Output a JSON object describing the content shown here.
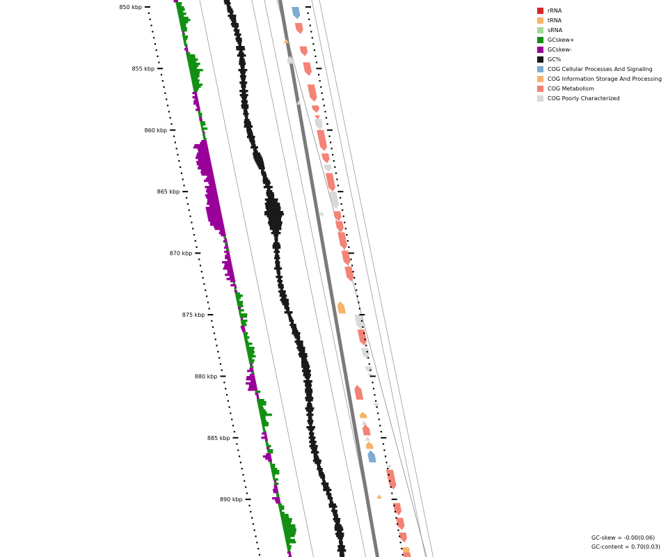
{
  "legend": [
    {
      "label": "rRNA",
      "color": "#d62728"
    },
    {
      "label": "tRNA",
      "color": "#f7b36b"
    },
    {
      "label": "sRNA",
      "color": "#a6d996"
    },
    {
      "label": "GCskew+",
      "color": "#138f13"
    },
    {
      "label": "GCskew-",
      "color": "#990099"
    },
    {
      "label": "GC%",
      "color": "#1a1a1a"
    },
    {
      "label": "COG Cellular Processes And Signaling",
      "color": "#7faad4"
    },
    {
      "label": "COG Information Storage And Processing",
      "color": "#f7b36b"
    },
    {
      "label": "COG Metabolism",
      "color": "#f48377"
    },
    {
      "label": "COG Poorly Characterized",
      "color": "#d9d9d9"
    }
  ],
  "stats": {
    "gc_skew": "GC-skew = -0.00(0.06)",
    "gc_content": "GC-content = 0.70(0.03)"
  },
  "ticks": [
    {
      "kbp": 850,
      "label": "850 kbp"
    },
    {
      "kbp": 855,
      "label": "855 kbp"
    },
    {
      "kbp": 860,
      "label": "860 kbp"
    },
    {
      "kbp": 865,
      "label": "865 kbp"
    },
    {
      "kbp": 870,
      "label": "870 kbp"
    },
    {
      "kbp": 875,
      "label": "875 kbp"
    },
    {
      "kbp": 880,
      "label": "880 kbp"
    },
    {
      "kbp": 885,
      "label": "885 kbp"
    },
    {
      "kbp": 890,
      "label": "890 kbp"
    }
  ],
  "genes": [
    {
      "kbp": 850.0,
      "len": 1.0,
      "strand": "+",
      "cog": "COG Cellular Processes And Signaling"
    },
    {
      "kbp": 851.3,
      "len": 0.9,
      "strand": "+",
      "cog": "COG Metabolism"
    },
    {
      "kbp": 852.6,
      "len": 0.3,
      "strand": "-",
      "cog": "COG Information Storage And Processing"
    },
    {
      "kbp": 853.2,
      "len": 0.8,
      "strand": "+",
      "cog": "COG Metabolism"
    },
    {
      "kbp": 854.0,
      "len": 0.6,
      "strand": "-",
      "cog": "COG Poorly Characterized"
    },
    {
      "kbp": 854.5,
      "len": 1.1,
      "strand": "+",
      "cog": "COG Metabolism"
    },
    {
      "kbp": 856.3,
      "len": 1.4,
      "strand": "+",
      "cog": "COG Metabolism"
    },
    {
      "kbp": 857.6,
      "len": 0.4,
      "strand": "-",
      "cog": "COG Poorly Characterized"
    },
    {
      "kbp": 858.0,
      "len": 0.6,
      "strand": "+",
      "cog": "COG Metabolism"
    },
    {
      "kbp": 858.8,
      "len": 0.3,
      "strand": "+",
      "cog": "COG Metabolism"
    },
    {
      "kbp": 859.1,
      "len": 0.9,
      "strand": "+",
      "cog": "COG Poorly Characterized"
    },
    {
      "kbp": 860.0,
      "len": 1.7,
      "strand": "+",
      "cog": "COG Metabolism"
    },
    {
      "kbp": 861.9,
      "len": 0.8,
      "strand": "+",
      "cog": "COG Metabolism"
    },
    {
      "kbp": 862.8,
      "len": 0.6,
      "strand": "+",
      "cog": "COG Poorly Characterized"
    },
    {
      "kbp": 863.5,
      "len": 1.5,
      "strand": "+",
      "cog": "COG Metabolism"
    },
    {
      "kbp": 865.0,
      "len": 1.4,
      "strand": "+",
      "cog": "COG Poorly Characterized"
    },
    {
      "kbp": 866.6,
      "len": 0.4,
      "strand": "-",
      "cog": "COG Poorly Characterized"
    },
    {
      "kbp": 866.6,
      "len": 0.8,
      "strand": "+",
      "cog": "COG Metabolism"
    },
    {
      "kbp": 867.4,
      "len": 0.9,
      "strand": "+",
      "cog": "COG Metabolism"
    },
    {
      "kbp": 868.3,
      "len": 1.4,
      "strand": "+",
      "cog": "COG Metabolism"
    },
    {
      "kbp": 869.8,
      "len": 1.2,
      "strand": "+",
      "cog": "COG Metabolism"
    },
    {
      "kbp": 871.1,
      "len": 1.2,
      "strand": "+",
      "cog": "COG Metabolism"
    },
    {
      "kbp": 873.9,
      "len": 1.0,
      "strand": "-",
      "cog": "COG Information Storage And Processing"
    },
    {
      "kbp": 875.0,
      "len": 1.2,
      "strand": "+",
      "cog": "COG Poorly Characterized"
    },
    {
      "kbp": 876.2,
      "len": 1.3,
      "strand": "+",
      "cog": "COG Metabolism"
    },
    {
      "kbp": 877.7,
      "len": 0.9,
      "strand": "+",
      "cog": "COG Poorly Characterized"
    },
    {
      "kbp": 879.2,
      "len": 0.5,
      "strand": "+",
      "cog": "COG Poorly Characterized"
    },
    {
      "kbp": 879.8,
      "len": 0.4,
      "strand": "+",
      "cog": "COG Poorly Characterized"
    },
    {
      "kbp": 880.7,
      "len": 1.2,
      "strand": "-",
      "cog": "COG Metabolism"
    },
    {
      "kbp": 882.2,
      "len": 0.3,
      "strand": "+",
      "cog": "COG Poorly Characterized"
    },
    {
      "kbp": 882.9,
      "len": 0.5,
      "strand": "-",
      "cog": "COG Information Storage And Processing"
    },
    {
      "kbp": 883.6,
      "len": 0.3,
      "strand": "-",
      "cog": "COG Poorly Characterized"
    },
    {
      "kbp": 883.9,
      "len": 0.9,
      "strand": "-",
      "cog": "COG Metabolism"
    },
    {
      "kbp": 884.9,
      "len": 0.3,
      "strand": "-",
      "cog": "COG Poorly Characterized"
    },
    {
      "kbp": 885.3,
      "len": 0.6,
      "strand": "-",
      "cog": "COG Information Storage And Processing"
    },
    {
      "kbp": 886.0,
      "len": 1.0,
      "strand": "-",
      "cog": "COG Cellular Processes And Signaling"
    },
    {
      "kbp": 887.2,
      "len": 0.4,
      "strand": "+",
      "cog": "COG Poorly Characterized"
    },
    {
      "kbp": 887.6,
      "len": 1.6,
      "strand": "+",
      "cog": "COG Metabolism"
    },
    {
      "kbp": 889.6,
      "len": 0.4,
      "strand": "-",
      "cog": "COG Information Storage And Processing"
    },
    {
      "kbp": 890.3,
      "len": 1.0,
      "strand": "+",
      "cog": "COG Metabolism"
    },
    {
      "kbp": 891.5,
      "len": 1.0,
      "strand": "+",
      "cog": "COG Metabolism"
    },
    {
      "kbp": 892.7,
      "len": 0.8,
      "strand": "+",
      "cog": "COG Metabolism"
    },
    {
      "kbp": 893.9,
      "len": 0.6,
      "strand": "+",
      "cog": "COG Information Storage And Processing"
    },
    {
      "kbp": 894.3,
      "len": 0.8,
      "strand": "+",
      "cog": "COG Metabolism"
    }
  ]
}
